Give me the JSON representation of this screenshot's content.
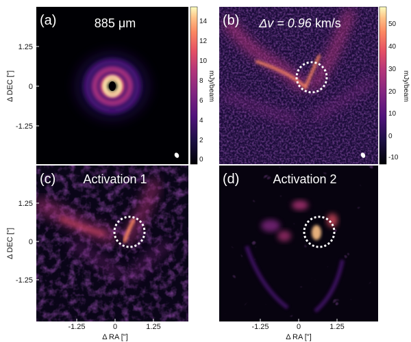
{
  "chart_data": [
    {
      "type": "heatmap",
      "panel": "(a)",
      "title": "885 μm",
      "ylabel": "Δ DEC [\"]",
      "xlabel": "",
      "yticks": [
        "1.25",
        "0",
        "-1.25"
      ],
      "xticks": [],
      "colorbar": {
        "label": "mJy/beam",
        "ticks": [
          "14",
          "12",
          "10",
          "8",
          "6",
          "4",
          "2",
          "0"
        ],
        "colormap": "magma"
      },
      "structure": "concentric rings with bright inner ring around central cavity",
      "beam": "small ellipse bottom-right"
    },
    {
      "type": "heatmap",
      "panel": "(b)",
      "title_prefix": "Δv = 0.96",
      "title_unit": " km/s",
      "ylabel": "",
      "xlabel": "",
      "yticks": [],
      "xticks": [],
      "colorbar": {
        "label": "mJy/beam",
        "ticks": [
          "50",
          "40",
          "30",
          "20",
          "10",
          "0",
          "-10"
        ],
        "colormap": "magma"
      },
      "structure": "V-shaped velocity channel emission with kink inside dashed circle",
      "annotation": "dashed white circle",
      "beam": "small ellipse bottom-right"
    },
    {
      "type": "heatmap",
      "panel": "(c)",
      "title": "Activation 1",
      "ylabel": "Δ DEC [\"]",
      "xlabel": "Δ RA [\"]",
      "yticks": [
        "1.25",
        "0",
        "-1.25"
      ],
      "xticks": [
        "-1.25",
        "0",
        "1.25"
      ],
      "colormap": "magma",
      "annotation": "dashed white circle"
    },
    {
      "type": "heatmap",
      "panel": "(d)",
      "title": "Activation 2",
      "ylabel": "",
      "xlabel": "Δ RA [\"]",
      "yticks": [],
      "xticks": [
        "-1.25",
        "0",
        "1.25"
      ],
      "colormap": "magma",
      "annotation": "dashed white circle"
    }
  ]
}
